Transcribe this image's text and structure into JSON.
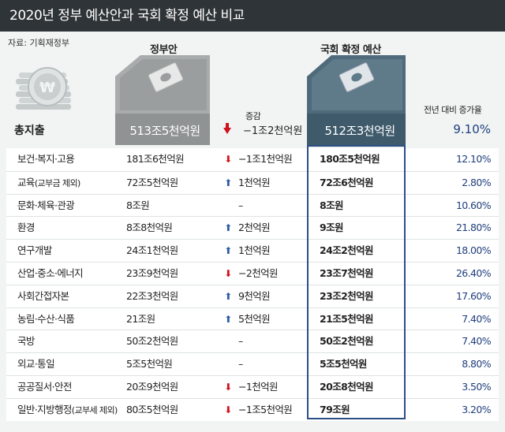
{
  "title": "2020년 정부 예산안과 국회 확정 예산 비교",
  "source": "자료: 기획재정부",
  "headers": {
    "government": "정부안",
    "national_assembly": "국회 확정 예산",
    "change": "증감",
    "growth_rate": "전년 대비 증가율"
  },
  "icons": {
    "coin_stack": "won-coin-stack-icon",
    "money": "banknote-icon",
    "decrease": "down-arrow-icon",
    "increase": "up-arrow-icon"
  },
  "colors": {
    "title_bg": "#2f3438",
    "gov_block": "#8f9393",
    "nat_block": "#3e5a6b",
    "decrease_arrow": "#d0101a",
    "increase_arrow": "#2c5aa5",
    "rate_text": "#1f3e7c",
    "highlight_border": "#2b4f86"
  },
  "chart_data": {
    "type": "table",
    "title": "2020년 정부 예산안과 국회 확정 예산 비교",
    "columns": [
      "",
      "정부안",
      "증감",
      "국회 확정 예산",
      "전년 대비 증가율"
    ],
    "total": {
      "label": "총지출",
      "government": "513조5천억원",
      "change_dir": "down",
      "change": "−1조2천억원",
      "national_assembly": "512조3천억원",
      "growth_rate": "9.10%"
    },
    "rows": [
      {
        "label": "보건·복지·고용",
        "label_note": "",
        "government": "181조6천억원",
        "change_dir": "down",
        "change": "−1조1천억원",
        "national_assembly": "180조5천억원",
        "growth_rate": "12.10%"
      },
      {
        "label": "교육",
        "label_note": "(교부금 제외)",
        "government": "72조5천억원",
        "change_dir": "up",
        "change": "1천억원",
        "national_assembly": "72조6천억원",
        "growth_rate": "2.80%"
      },
      {
        "label": "문화·체육·관광",
        "label_note": "",
        "government": "8조원",
        "change_dir": "none",
        "change": "–",
        "national_assembly": "8조원",
        "growth_rate": "10.60%"
      },
      {
        "label": "환경",
        "label_note": "",
        "government": "8조8천억원",
        "change_dir": "up",
        "change": "2천억원",
        "national_assembly": "9조원",
        "growth_rate": "21.80%"
      },
      {
        "label": "연구개발",
        "label_note": "",
        "government": "24조1천억원",
        "change_dir": "up",
        "change": "1천억원",
        "national_assembly": "24조2천억원",
        "growth_rate": "18.00%"
      },
      {
        "label": "산업·중소·에너지",
        "label_note": "",
        "government": "23조9천억원",
        "change_dir": "down",
        "change": "−2천억원",
        "national_assembly": "23조7천억원",
        "growth_rate": "26.40%"
      },
      {
        "label": "사회간접자본",
        "label_note": "",
        "government": "22조3천억원",
        "change_dir": "up",
        "change": "9천억원",
        "national_assembly": "23조2천억원",
        "growth_rate": "17.60%"
      },
      {
        "label": "농림·수산·식품",
        "label_note": "",
        "government": "21조원",
        "change_dir": "up",
        "change": "5천억원",
        "national_assembly": "21조5천억원",
        "growth_rate": "7.40%"
      },
      {
        "label": "국방",
        "label_note": "",
        "government": "50조2천억원",
        "change_dir": "none",
        "change": "–",
        "national_assembly": "50조2천억원",
        "growth_rate": "7.40%"
      },
      {
        "label": "외교·통일",
        "label_note": "",
        "government": "5조5천억원",
        "change_dir": "none",
        "change": "–",
        "national_assembly": "5조5천억원",
        "growth_rate": "8.80%"
      },
      {
        "label": "공공질서·안전",
        "label_note": "",
        "government": "20조9천억원",
        "change_dir": "down",
        "change": "−1천억원",
        "national_assembly": "20조8천억원",
        "growth_rate": "3.50%"
      },
      {
        "label": "일반·지방행정",
        "label_note": "(교부세 제외)",
        "government": "80조5천억원",
        "change_dir": "down",
        "change": "−1조5천억원",
        "national_assembly": "79조원",
        "growth_rate": "3.20%"
      }
    ]
  }
}
